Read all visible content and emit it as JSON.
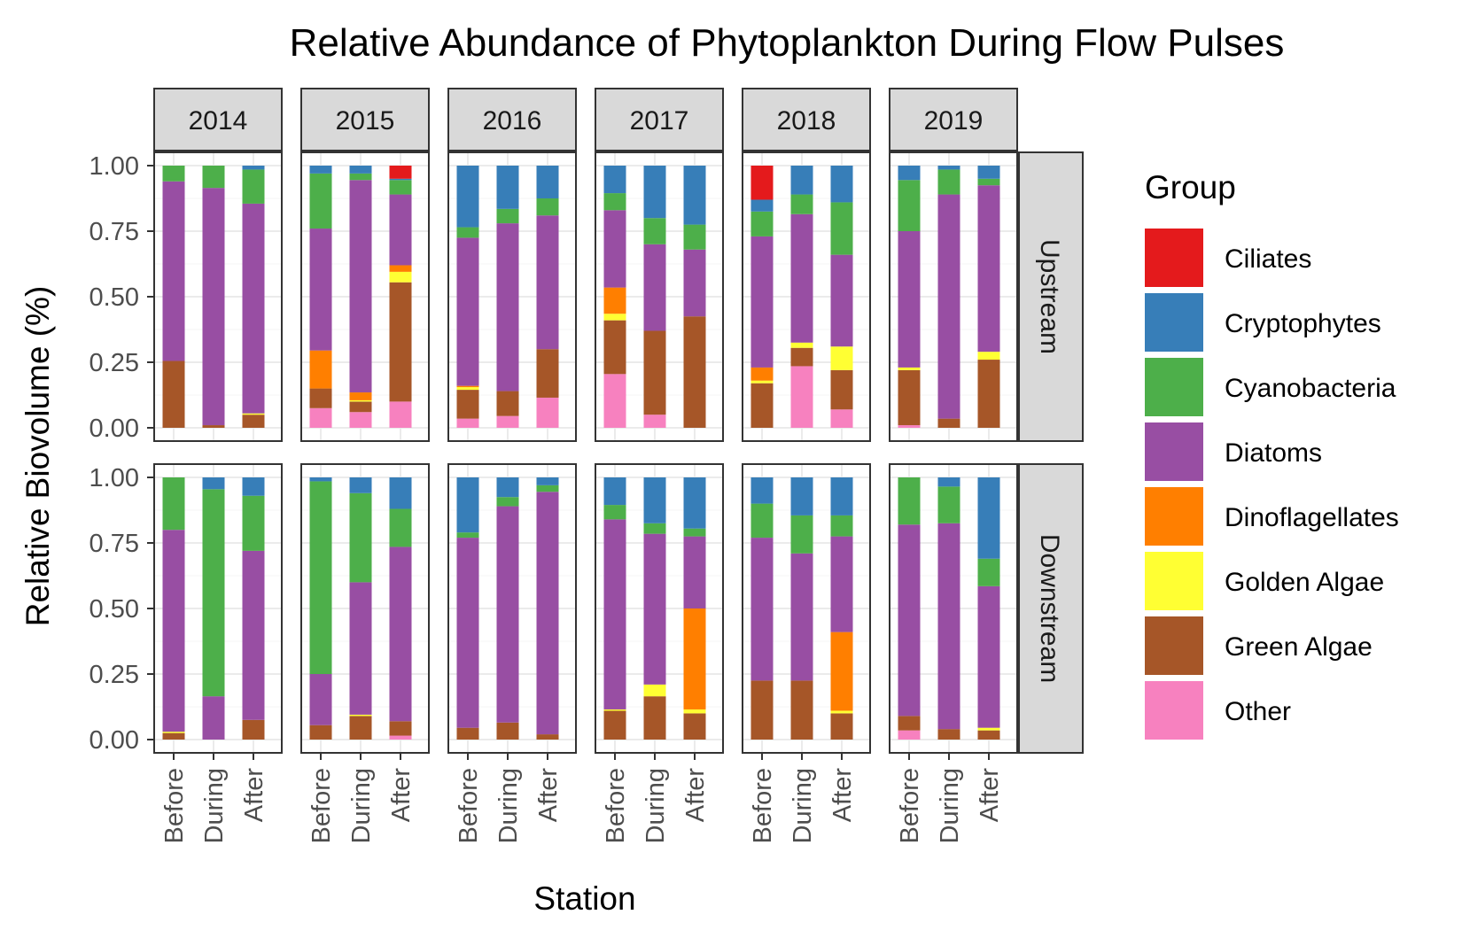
{
  "chart_data": {
    "type": "bar",
    "stacked": true,
    "title": "Relative Abundance of Phytoplankton During Flow Pulses",
    "xlabel": "Station",
    "ylabel": "Relative Biovolume (%)",
    "ylim": [
      0,
      1
    ],
    "yticks": [
      "0.00",
      "0.25",
      "0.50",
      "0.75",
      "1.00"
    ],
    "categories": [
      "Before",
      "During",
      "After"
    ],
    "facet_cols": [
      "2014",
      "2015",
      "2016",
      "2017",
      "2018",
      "2019"
    ],
    "facet_rows": [
      "Upstream",
      "Downstream"
    ],
    "legend": {
      "title": "Group",
      "position": "right",
      "items": [
        {
          "name": "Ciliates",
          "color": "#E41A1C"
        },
        {
          "name": "Cryptophytes",
          "color": "#377EB8"
        },
        {
          "name": "Cyanobacteria",
          "color": "#4DAF4A"
        },
        {
          "name": "Diatoms",
          "color": "#984EA3"
        },
        {
          "name": "Dinoflagellates",
          "color": "#FF7F00"
        },
        {
          "name": "Golden Algae",
          "color": "#FFFF33"
        },
        {
          "name": "Green Algae",
          "color": "#A65628"
        },
        {
          "name": "Other",
          "color": "#F781BF"
        }
      ]
    },
    "stack_order_bottom_to_top": [
      "Other",
      "Green Algae",
      "Golden Algae",
      "Dinoflagellates",
      "Diatoms",
      "Cyanobacteria",
      "Cryptophytes",
      "Ciliates"
    ],
    "grid": true,
    "panels": [
      {
        "row": "Upstream",
        "col": "2014",
        "bars": [
          {
            "station": "Before",
            "Other": 0,
            "Green Algae": 0.255,
            "Golden Algae": 0,
            "Dinoflagellates": 0,
            "Diatoms": 0.685,
            "Cyanobacteria": 0.06,
            "Cryptophytes": 0,
            "Ciliates": 0
          },
          {
            "station": "During",
            "Other": 0,
            "Green Algae": 0.01,
            "Golden Algae": 0,
            "Dinoflagellates": 0,
            "Diatoms": 0.905,
            "Cyanobacteria": 0.085,
            "Cryptophytes": 0,
            "Ciliates": 0
          },
          {
            "station": "After",
            "Other": 0,
            "Green Algae": 0.05,
            "Golden Algae": 0.005,
            "Dinoflagellates": 0,
            "Diatoms": 0.8,
            "Cyanobacteria": 0.13,
            "Cryptophytes": 0.015,
            "Ciliates": 0
          }
        ]
      },
      {
        "row": "Upstream",
        "col": "2015",
        "bars": [
          {
            "station": "Before",
            "Other": 0.075,
            "Green Algae": 0.075,
            "Golden Algae": 0,
            "Dinoflagellates": 0.145,
            "Diatoms": 0.465,
            "Cyanobacteria": 0.21,
            "Cryptophytes": 0.03,
            "Ciliates": 0
          },
          {
            "station": "During",
            "Other": 0.06,
            "Green Algae": 0.04,
            "Golden Algae": 0.005,
            "Dinoflagellates": 0.03,
            "Diatoms": 0.81,
            "Cyanobacteria": 0.025,
            "Cryptophytes": 0.03,
            "Ciliates": 0
          },
          {
            "station": "After",
            "Other": 0.1,
            "Green Algae": 0.455,
            "Golden Algae": 0.04,
            "Dinoflagellates": 0.025,
            "Diatoms": 0.27,
            "Cyanobacteria": 0.055,
            "Cryptophytes": 0.005,
            "Ciliates": 0.05
          }
        ]
      },
      {
        "row": "Upstream",
        "col": "2016",
        "bars": [
          {
            "station": "Before",
            "Other": 0.035,
            "Green Algae": 0.11,
            "Golden Algae": 0.01,
            "Dinoflagellates": 0.005,
            "Diatoms": 0.565,
            "Cyanobacteria": 0.04,
            "Cryptophytes": 0.235,
            "Ciliates": 0
          },
          {
            "station": "During",
            "Other": 0.045,
            "Green Algae": 0.095,
            "Golden Algae": 0,
            "Dinoflagellates": 0,
            "Diatoms": 0.64,
            "Cyanobacteria": 0.055,
            "Cryptophytes": 0.165,
            "Ciliates": 0
          },
          {
            "station": "After",
            "Other": 0.115,
            "Green Algae": 0.185,
            "Golden Algae": 0,
            "Dinoflagellates": 0,
            "Diatoms": 0.51,
            "Cyanobacteria": 0.065,
            "Cryptophytes": 0.125,
            "Ciliates": 0
          }
        ]
      },
      {
        "row": "Upstream",
        "col": "2017",
        "bars": [
          {
            "station": "Before",
            "Other": 0.205,
            "Green Algae": 0.205,
            "Golden Algae": 0.025,
            "Dinoflagellates": 0.1,
            "Diatoms": 0.295,
            "Cyanobacteria": 0.065,
            "Cryptophytes": 0.105,
            "Ciliates": 0
          },
          {
            "station": "During",
            "Other": 0.05,
            "Green Algae": 0.32,
            "Golden Algae": 0,
            "Dinoflagellates": 0,
            "Diatoms": 0.33,
            "Cyanobacteria": 0.1,
            "Cryptophytes": 0.2,
            "Ciliates": 0
          },
          {
            "station": "After",
            "Other": 0,
            "Green Algae": 0.425,
            "Golden Algae": 0,
            "Dinoflagellates": 0,
            "Diatoms": 0.255,
            "Cyanobacteria": 0.095,
            "Cryptophytes": 0.225,
            "Ciliates": 0
          }
        ]
      },
      {
        "row": "Upstream",
        "col": "2018",
        "bars": [
          {
            "station": "Before",
            "Other": 0,
            "Green Algae": 0.17,
            "Golden Algae": 0.01,
            "Dinoflagellates": 0.05,
            "Diatoms": 0.5,
            "Cyanobacteria": 0.095,
            "Cryptophytes": 0.045,
            "Ciliates": 0.13
          },
          {
            "station": "During",
            "Other": 0.235,
            "Green Algae": 0.07,
            "Golden Algae": 0.02,
            "Dinoflagellates": 0,
            "Diatoms": 0.49,
            "Cyanobacteria": 0.075,
            "Cryptophytes": 0.11,
            "Ciliates": 0
          },
          {
            "station": "After",
            "Other": 0.07,
            "Green Algae": 0.15,
            "Golden Algae": 0.09,
            "Dinoflagellates": 0,
            "Diatoms": 0.35,
            "Cyanobacteria": 0.2,
            "Cryptophytes": 0.14,
            "Ciliates": 0
          }
        ]
      },
      {
        "row": "Upstream",
        "col": "2019",
        "bars": [
          {
            "station": "Before",
            "Other": 0.01,
            "Green Algae": 0.21,
            "Golden Algae": 0.01,
            "Dinoflagellates": 0,
            "Diatoms": 0.52,
            "Cyanobacteria": 0.195,
            "Cryptophytes": 0.055,
            "Ciliates": 0
          },
          {
            "station": "During",
            "Other": 0,
            "Green Algae": 0.035,
            "Golden Algae": 0,
            "Dinoflagellates": 0,
            "Diatoms": 0.855,
            "Cyanobacteria": 0.095,
            "Cryptophytes": 0.015,
            "Ciliates": 0
          },
          {
            "station": "After",
            "Other": 0,
            "Green Algae": 0.26,
            "Golden Algae": 0.03,
            "Dinoflagellates": 0,
            "Diatoms": 0.635,
            "Cyanobacteria": 0.025,
            "Cryptophytes": 0.05,
            "Ciliates": 0
          }
        ]
      },
      {
        "row": "Downstream",
        "col": "2014",
        "bars": [
          {
            "station": "Before",
            "Other": 0,
            "Green Algae": 0.025,
            "Golden Algae": 0.005,
            "Dinoflagellates": 0,
            "Diatoms": 0.77,
            "Cyanobacteria": 0.2,
            "Cryptophytes": 0,
            "Ciliates": 0
          },
          {
            "station": "During",
            "Other": 0,
            "Green Algae": 0,
            "Golden Algae": 0,
            "Dinoflagellates": 0,
            "Diatoms": 0.165,
            "Cyanobacteria": 0.79,
            "Cryptophytes": 0.045,
            "Ciliates": 0
          },
          {
            "station": "After",
            "Other": 0,
            "Green Algae": 0.075,
            "Golden Algae": 0,
            "Dinoflagellates": 0,
            "Diatoms": 0.645,
            "Cyanobacteria": 0.21,
            "Cryptophytes": 0.07,
            "Ciliates": 0
          }
        ]
      },
      {
        "row": "Downstream",
        "col": "2015",
        "bars": [
          {
            "station": "Before",
            "Other": 0,
            "Green Algae": 0.055,
            "Golden Algae": 0,
            "Dinoflagellates": 0,
            "Diatoms": 0.195,
            "Cyanobacteria": 0.735,
            "Cryptophytes": 0.015,
            "Ciliates": 0
          },
          {
            "station": "During",
            "Other": 0,
            "Green Algae": 0.09,
            "Golden Algae": 0.005,
            "Dinoflagellates": 0,
            "Diatoms": 0.505,
            "Cyanobacteria": 0.34,
            "Cryptophytes": 0.06,
            "Ciliates": 0
          },
          {
            "station": "After",
            "Other": 0.015,
            "Green Algae": 0.055,
            "Golden Algae": 0,
            "Dinoflagellates": 0,
            "Diatoms": 0.665,
            "Cyanobacteria": 0.145,
            "Cryptophytes": 0.12,
            "Ciliates": 0
          }
        ]
      },
      {
        "row": "Downstream",
        "col": "2016",
        "bars": [
          {
            "station": "Before",
            "Other": 0,
            "Green Algae": 0.045,
            "Golden Algae": 0,
            "Dinoflagellates": 0,
            "Diatoms": 0.725,
            "Cyanobacteria": 0.02,
            "Cryptophytes": 0.21,
            "Ciliates": 0
          },
          {
            "station": "During",
            "Other": 0,
            "Green Algae": 0.065,
            "Golden Algae": 0,
            "Dinoflagellates": 0,
            "Diatoms": 0.825,
            "Cyanobacteria": 0.035,
            "Cryptophytes": 0.075,
            "Ciliates": 0
          },
          {
            "station": "After",
            "Other": 0,
            "Green Algae": 0.02,
            "Golden Algae": 0,
            "Dinoflagellates": 0,
            "Diatoms": 0.925,
            "Cyanobacteria": 0.025,
            "Cryptophytes": 0.03,
            "Ciliates": 0
          }
        ]
      },
      {
        "row": "Downstream",
        "col": "2017",
        "bars": [
          {
            "station": "Before",
            "Other": 0,
            "Green Algae": 0.11,
            "Golden Algae": 0.005,
            "Dinoflagellates": 0,
            "Diatoms": 0.725,
            "Cyanobacteria": 0.055,
            "Cryptophytes": 0.105,
            "Ciliates": 0
          },
          {
            "station": "During",
            "Other": 0,
            "Green Algae": 0.165,
            "Golden Algae": 0.045,
            "Dinoflagellates": 0,
            "Diatoms": 0.575,
            "Cyanobacteria": 0.04,
            "Cryptophytes": 0.175,
            "Ciliates": 0
          },
          {
            "station": "After",
            "Other": 0,
            "Green Algae": 0.1,
            "Golden Algae": 0.015,
            "Dinoflagellates": 0.385,
            "Diatoms": 0.275,
            "Cyanobacteria": 0.03,
            "Cryptophytes": 0.195,
            "Ciliates": 0
          }
        ]
      },
      {
        "row": "Downstream",
        "col": "2018",
        "bars": [
          {
            "station": "Before",
            "Other": 0,
            "Green Algae": 0.225,
            "Golden Algae": 0,
            "Dinoflagellates": 0,
            "Diatoms": 0.545,
            "Cyanobacteria": 0.13,
            "Cryptophytes": 0.1,
            "Ciliates": 0
          },
          {
            "station": "During",
            "Other": 0,
            "Green Algae": 0.225,
            "Golden Algae": 0,
            "Dinoflagellates": 0,
            "Diatoms": 0.485,
            "Cyanobacteria": 0.145,
            "Cryptophytes": 0.145,
            "Ciliates": 0
          },
          {
            "station": "After",
            "Other": 0,
            "Green Algae": 0.1,
            "Golden Algae": 0.01,
            "Dinoflagellates": 0.3,
            "Diatoms": 0.365,
            "Cyanobacteria": 0.08,
            "Cryptophytes": 0.145,
            "Ciliates": 0
          }
        ]
      },
      {
        "row": "Downstream",
        "col": "2019",
        "bars": [
          {
            "station": "Before",
            "Other": 0.035,
            "Green Algae": 0.055,
            "Golden Algae": 0,
            "Dinoflagellates": 0,
            "Diatoms": 0.73,
            "Cyanobacteria": 0.18,
            "Cryptophytes": 0,
            "Ciliates": 0
          },
          {
            "station": "During",
            "Other": 0,
            "Green Algae": 0.04,
            "Golden Algae": 0,
            "Dinoflagellates": 0,
            "Diatoms": 0.785,
            "Cyanobacteria": 0.14,
            "Cryptophytes": 0.035,
            "Ciliates": 0
          },
          {
            "station": "After",
            "Other": 0,
            "Green Algae": 0.035,
            "Golden Algae": 0.01,
            "Dinoflagellates": 0,
            "Diatoms": 0.54,
            "Cyanobacteria": 0.105,
            "Cryptophytes": 0.31,
            "Ciliates": 0
          }
        ]
      }
    ]
  }
}
